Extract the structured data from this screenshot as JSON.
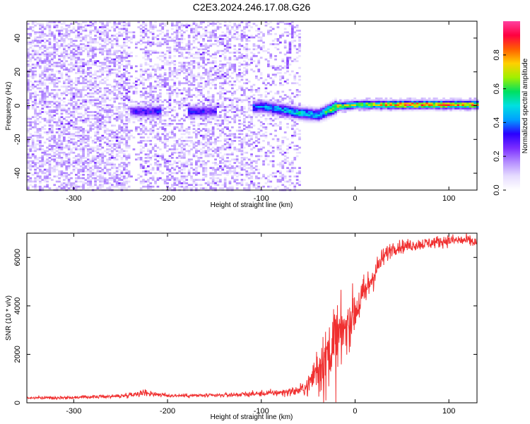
{
  "title": "C2E3.2024.246.17.08.G26",
  "colors": {
    "snr_line": "#f03030",
    "colormap": [
      "#ffffff",
      "#e6dcff",
      "#b48cff",
      "#7a2cff",
      "#2a00ff",
      "#00a0ff",
      "#00e0e0",
      "#00e060",
      "#a0f000",
      "#ffd000",
      "#ff6000",
      "#ff0040",
      "#ff40a0"
    ]
  },
  "chart_data": [
    {
      "type": "heatmap",
      "panel": "spectrogram",
      "xlabel": "Height of straight line (km)",
      "ylabel": "Frequency (Hz)",
      "xlim": [
        -350,
        130
      ],
      "ylim": [
        -50,
        50
      ],
      "x_ticks": [
        -300,
        -200,
        -100,
        0,
        100
      ],
      "y_ticks": [
        -40,
        -20,
        0,
        20,
        40
      ],
      "colorbar": {
        "label": "Normalized spectral amplitude",
        "range": [
          0,
          1
        ],
        "ticks": [
          0.0,
          0.2,
          0.4,
          0.6,
          0.8
        ]
      },
      "features": {
        "noise_region_x": [
          -350,
          -60
        ],
        "signal_ridge": [
          {
            "x": -240,
            "freq": -3,
            "amp": 0.3
          },
          {
            "x": -215,
            "freq": -3,
            "amp": 0.35
          },
          {
            "x": -175,
            "freq": -3,
            "amp": 0.35
          },
          {
            "x": -155,
            "freq": -3,
            "amp": 0.3
          },
          {
            "x": -100,
            "freq": 0,
            "amp": 0.45
          },
          {
            "x": -60,
            "freq": -4,
            "amp": 0.5
          },
          {
            "x": -40,
            "freq": -5,
            "amp": 0.5
          },
          {
            "x": -20,
            "freq": 0,
            "amp": 0.75
          },
          {
            "x": 0,
            "freq": 1,
            "amp": 0.65
          },
          {
            "x": 50,
            "freq": 1,
            "amp": 0.9
          },
          {
            "x": 100,
            "freq": 1,
            "amp": 0.85
          },
          {
            "x": 130,
            "freq": 1,
            "amp": 0.8
          }
        ],
        "diagonal_streak": {
          "x_from": -75,
          "x_to": -68,
          "freq_from": 20,
          "freq_to": 45
        }
      }
    },
    {
      "type": "line",
      "panel": "snr",
      "xlabel": "Height of straight line (km)",
      "ylabel": "SNR (10 * v/v)",
      "xlim": [
        -350,
        130
      ],
      "ylim": [
        0,
        7000
      ],
      "x_ticks": [
        -300,
        -200,
        -100,
        0,
        100
      ],
      "y_ticks": [
        0,
        2000,
        4000,
        6000
      ],
      "series": [
        {
          "x": [
            -350,
            -300,
            -250,
            -225,
            -200,
            -150,
            -100,
            -80,
            -60,
            -50,
            -40,
            -30,
            -20,
            -10,
            0,
            10,
            20,
            30,
            40,
            60,
            80,
            100,
            120,
            130
          ],
          "y": [
            200,
            220,
            280,
            420,
            300,
            300,
            380,
            420,
            500,
            700,
            1500,
            2200,
            2800,
            3200,
            3800,
            4500,
            5300,
            6000,
            6400,
            6500,
            6600,
            6700,
            6700,
            6600
          ],
          "noise": [
            60,
            60,
            80,
            150,
            80,
            80,
            120,
            150,
            200,
            400,
            900,
            1300,
            1300,
            1200,
            1000,
            800,
            600,
            400,
            300,
            250,
            250,
            250,
            250,
            250
          ]
        }
      ]
    }
  ]
}
